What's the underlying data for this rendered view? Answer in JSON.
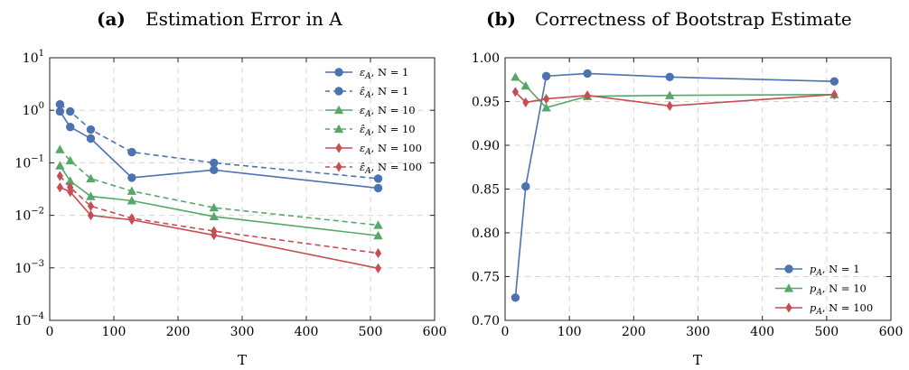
{
  "chart_data": [
    {
      "type": "line",
      "panel_label": "(a)",
      "title": "Estimation Error in A",
      "xlabel": "T",
      "ylabel": "",
      "xlim": [
        0,
        600
      ],
      "ylim": [
        0.0001,
        10
      ],
      "yscale": "log",
      "x_ticks": [
        "0",
        "100",
        "200",
        "300",
        "400",
        "500",
        "600"
      ],
      "y_ticks": [
        "10−⁴",
        "10−³",
        "10−²",
        "10−¹",
        "10⁰",
        "10¹"
      ],
      "grid": true,
      "legend_position": "top-right",
      "series": [
        {
          "name": "εA, N = 1",
          "color": "#4C72B0",
          "marker": "circle",
          "dashed": false,
          "x": [
            16,
            32,
            64,
            128,
            256,
            512
          ],
          "y": [
            0.95,
            0.48,
            0.29,
            0.052,
            0.073,
            0.033
          ]
        },
        {
          "name": "ε̂A, N = 1",
          "color": "#4C72B0",
          "marker": "circle",
          "dashed": true,
          "x": [
            16,
            32,
            64,
            128,
            256,
            512
          ],
          "y": [
            1.3,
            0.95,
            0.43,
            0.16,
            0.1,
            0.05
          ]
        },
        {
          "name": "εA, N = 10",
          "color": "#55A868",
          "marker": "triangle",
          "dashed": false,
          "x": [
            16,
            32,
            64,
            128,
            256,
            512
          ],
          "y": [
            0.088,
            0.045,
            0.023,
            0.019,
            0.0095,
            0.0041
          ]
        },
        {
          "name": "ε̂A, N = 10",
          "color": "#55A868",
          "marker": "triangle",
          "dashed": true,
          "x": [
            16,
            32,
            64,
            128,
            256,
            512
          ],
          "y": [
            0.18,
            0.11,
            0.05,
            0.029,
            0.014,
            0.0065
          ]
        },
        {
          "name": "εA, N = 100",
          "color": "#C44E52",
          "marker": "diamond",
          "dashed": false,
          "x": [
            16,
            32,
            64,
            128,
            256,
            512
          ],
          "y": [
            0.034,
            0.028,
            0.01,
            0.0082,
            0.0042,
            0.00098
          ]
        },
        {
          "name": "ε̂A, N = 100",
          "color": "#C44E52",
          "marker": "diamond",
          "dashed": true,
          "x": [
            16,
            32,
            64,
            128,
            256,
            512
          ],
          "y": [
            0.056,
            0.034,
            0.015,
            0.0088,
            0.005,
            0.0019
          ]
        }
      ]
    },
    {
      "type": "line",
      "panel_label": "(b)",
      "title": "Correctness of Bootstrap Estimate",
      "xlabel": "T",
      "ylabel": "",
      "xlim": [
        0,
        600
      ],
      "ylim": [
        0.7,
        1.0
      ],
      "yscale": "linear",
      "x_ticks": [
        "0",
        "100",
        "200",
        "300",
        "400",
        "500",
        "600"
      ],
      "y_ticks": [
        "0.70",
        "0.75",
        "0.80",
        "0.85",
        "0.90",
        "0.95",
        "1.00"
      ],
      "grid": true,
      "legend_position": "bottom-right",
      "series": [
        {
          "name": "pA, N = 1",
          "color": "#4C72B0",
          "marker": "circle",
          "dashed": false,
          "x": [
            16,
            32,
            64,
            128,
            256,
            512
          ],
          "y": [
            0.726,
            0.853,
            0.979,
            0.982,
            0.978,
            0.973
          ]
        },
        {
          "name": "pA, N = 10",
          "color": "#55A868",
          "marker": "triangle",
          "dashed": false,
          "x": [
            16,
            32,
            64,
            128,
            256,
            512
          ],
          "y": [
            0.978,
            0.968,
            0.943,
            0.956,
            0.957,
            0.958
          ]
        },
        {
          "name": "pA, N = 100",
          "color": "#C44E52",
          "marker": "diamond",
          "dashed": false,
          "x": [
            16,
            32,
            64,
            128,
            256,
            512
          ],
          "y": [
            0.961,
            0.949,
            0.953,
            0.957,
            0.945,
            0.958
          ]
        }
      ]
    }
  ]
}
